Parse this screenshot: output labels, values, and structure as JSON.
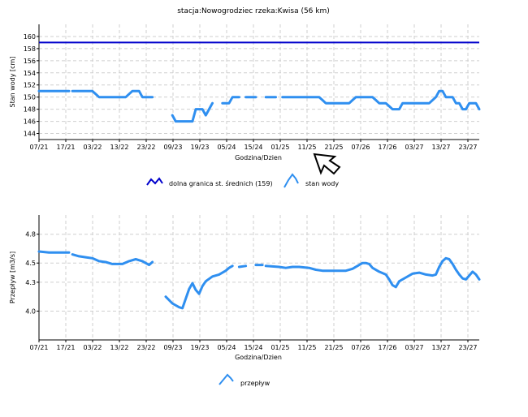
{
  "chart_data": [
    {
      "type": "line",
      "title": "stacja:Nowogrodziec   rzeka:Kwisa (56 km)",
      "ylabel": "Stan wody [cm]",
      "xlabel": "Godzina/Dzien",
      "ylim": [
        143,
        162
      ],
      "yticks": [
        144,
        146,
        148,
        150,
        152,
        154,
        156,
        158,
        160
      ],
      "xticks": [
        "07/21",
        "17/21",
        "03/22",
        "13/22",
        "23/22",
        "09/23",
        "19/23",
        "05/24",
        "15/24",
        "01/25",
        "11/25",
        "21/25",
        "07/26",
        "17/26",
        "03/27",
        "13/27",
        "23/27"
      ],
      "grid": true,
      "colors": {
        "threshold": "#0000cc",
        "series": "#2f8ff0"
      },
      "legend": {
        "placement": "bottom",
        "entries": [
          "dolna granica st. średnich (159)",
          "stan wody"
        ]
      },
      "threshold": 159,
      "series": [
        {
          "name": "stan wody",
          "segments": [
            [
              [
                0,
                151
              ],
              [
                3,
                151
              ],
              [
                6,
                151
              ],
              [
                9,
                151
              ]
            ],
            [
              [
                10,
                151
              ],
              [
                14,
                151
              ],
              [
                16,
                151
              ],
              [
                17,
                150.5
              ],
              [
                18,
                150
              ],
              [
                20,
                150
              ],
              [
                24,
                150
              ],
              [
                26,
                150
              ],
              [
                28,
                151
              ],
              [
                30,
                151
              ],
              [
                31,
                150
              ],
              [
                32,
                150
              ],
              [
                34,
                150
              ]
            ],
            [
              [
                40,
                147
              ],
              [
                41,
                146
              ],
              [
                44,
                146
              ],
              [
                46,
                146
              ],
              [
                47,
                148
              ],
              [
                49,
                148
              ],
              [
                50,
                147
              ],
              [
                51,
                148
              ],
              [
                52,
                149
              ]
            ],
            [
              [
                55,
                149
              ],
              [
                57,
                149
              ],
              [
                58,
                150
              ],
              [
                59,
                150
              ],
              [
                60,
                150
              ]
            ],
            [
              [
                62,
                150
              ],
              [
                65,
                150
              ]
            ],
            [
              [
                68,
                150
              ],
              [
                71,
                150
              ]
            ],
            [
              [
                73,
                150
              ],
              [
                80,
                150
              ],
              [
                84,
                150
              ],
              [
                85,
                149.5
              ],
              [
                86,
                149
              ],
              [
                93,
                149
              ],
              [
                94,
                149.5
              ],
              [
                95,
                150
              ],
              [
                100,
                150
              ],
              [
                101,
                149.5
              ],
              [
                102,
                149
              ],
              [
                104,
                149
              ],
              [
                105,
                148.5
              ],
              [
                106,
                148
              ],
              [
                108,
                148
              ],
              [
                109,
                149
              ],
              [
                112,
                149
              ],
              [
                117,
                149
              ],
              [
                119,
                150
              ],
              [
                120,
                151
              ],
              [
                121,
                151
              ],
              [
                122,
                150
              ],
              [
                124,
                150
              ],
              [
                125,
                149
              ],
              [
                126,
                149
              ],
              [
                127,
                148
              ],
              [
                128,
                148
              ],
              [
                129,
                149
              ],
              [
                131,
                149
              ],
              [
                132,
                148
              ]
            ]
          ]
        }
      ]
    },
    {
      "type": "line",
      "ylabel": "Przepływ [m3/s]",
      "xlabel": "Godzina/Dzien",
      "ylim": [
        3.7,
        5.0
      ],
      "yticks": [
        "4.0",
        "4.3",
        "4.5",
        "4.8"
      ],
      "xticks": [
        "07/21",
        "17/21",
        "03/22",
        "13/22",
        "23/22",
        "09/23",
        "19/23",
        "05/24",
        "15/24",
        "01/25",
        "11/25",
        "21/25",
        "07/26",
        "17/26",
        "03/27",
        "13/27",
        "23/27"
      ],
      "grid": true,
      "colors": {
        "series": "#2f8ff0"
      },
      "legend": {
        "placement": "bottom",
        "entries": [
          "przepływ"
        ]
      },
      "series": [
        {
          "name": "przepływ",
          "segments": [
            [
              [
                0,
                4.62
              ],
              [
                3,
                4.61
              ],
              [
                6,
                4.61
              ],
              [
                9,
                4.61
              ]
            ],
            [
              [
                10,
                4.59
              ],
              [
                12,
                4.57
              ],
              [
                14,
                4.56
              ],
              [
                16,
                4.55
              ],
              [
                18,
                4.52
              ],
              [
                20,
                4.51
              ],
              [
                22,
                4.49
              ],
              [
                25,
                4.49
              ],
              [
                27,
                4.52
              ],
              [
                29,
                4.54
              ],
              [
                31,
                4.52
              ],
              [
                33,
                4.48
              ],
              [
                34,
                4.51
              ]
            ],
            [
              [
                38,
                4.15
              ],
              [
                40,
                4.08
              ],
              [
                42,
                4.04
              ],
              [
                43,
                4.03
              ],
              [
                45,
                4.23
              ],
              [
                46,
                4.29
              ],
              [
                47,
                4.22
              ],
              [
                48,
                4.18
              ],
              [
                49,
                4.26
              ],
              [
                50,
                4.31
              ],
              [
                52,
                4.36
              ],
              [
                54,
                4.38
              ],
              [
                56,
                4.42
              ],
              [
                57,
                4.45
              ],
              [
                58,
                4.47
              ]
            ],
            [
              [
                60,
                4.46
              ],
              [
                62,
                4.47
              ]
            ],
            [
              [
                65,
                4.48
              ],
              [
                67,
                4.48
              ]
            ],
            [
              [
                68,
                4.47
              ],
              [
                72,
                4.46
              ],
              [
                74,
                4.45
              ],
              [
                76,
                4.46
              ],
              [
                78,
                4.46
              ],
              [
                81,
                4.45
              ],
              [
                83,
                4.43
              ],
              [
                85,
                4.42
              ],
              [
                88,
                4.42
              ],
              [
                92,
                4.42
              ],
              [
                94,
                4.44
              ],
              [
                96,
                4.48
              ],
              [
                97,
                4.5
              ],
              [
                98,
                4.5
              ],
              [
                99,
                4.49
              ],
              [
                100,
                4.45
              ],
              [
                102,
                4.41
              ],
              [
                104,
                4.38
              ],
              [
                105,
                4.33
              ],
              [
                106,
                4.27
              ],
              [
                107,
                4.25
              ],
              [
                108,
                4.31
              ],
              [
                110,
                4.35
              ],
              [
                112,
                4.39
              ],
              [
                114,
                4.4
              ],
              [
                116,
                4.38
              ],
              [
                118,
                4.37
              ],
              [
                119,
                4.38
              ],
              [
                120,
                4.46
              ],
              [
                121,
                4.52
              ],
              [
                122,
                4.55
              ],
              [
                123,
                4.54
              ],
              [
                124,
                4.49
              ],
              [
                125,
                4.43
              ],
              [
                126,
                4.38
              ],
              [
                127,
                4.34
              ],
              [
                128,
                4.33
              ],
              [
                129,
                4.37
              ],
              [
                130,
                4.41
              ],
              [
                131,
                4.38
              ],
              [
                132,
                4.33
              ]
            ]
          ]
        }
      ]
    }
  ]
}
